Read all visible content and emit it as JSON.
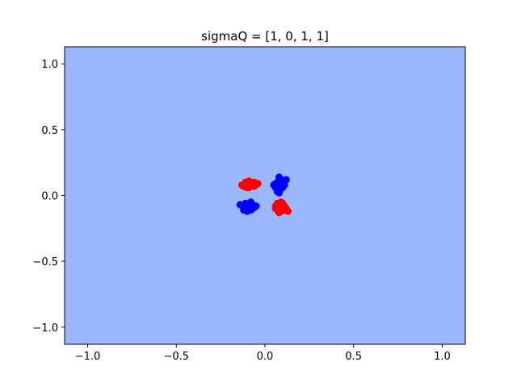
{
  "chart_data": {
    "type": "scatter",
    "title": "sigmaQ = [1, 0, 1, 1]",
    "xlabel": "",
    "ylabel": "",
    "xlim": [
      -1.13,
      1.13
    ],
    "ylim": [
      -1.13,
      1.13
    ],
    "grid": false,
    "background_color": "#9bb7ff",
    "x_ticks": [
      -1.0,
      -0.5,
      0.0,
      0.5,
      1.0
    ],
    "x_tick_labels": [
      "−1.0",
      "−0.5",
      "0.0",
      "0.5",
      "1.0"
    ],
    "y_ticks": [
      -1.0,
      -0.5,
      0.0,
      0.5,
      1.0
    ],
    "y_tick_labels": [
      "−1.0",
      "−0.5",
      "0.0",
      "0.5",
      "1.0"
    ],
    "series": [
      {
        "color": "#ff0000",
        "points": [
          [
            -0.12,
            0.07
          ],
          [
            -0.11,
            0.1
          ],
          [
            -0.1,
            0.08
          ],
          [
            -0.09,
            0.11
          ],
          [
            -0.08,
            0.07
          ],
          [
            -0.07,
            0.09
          ],
          [
            -0.06,
            0.1
          ],
          [
            -0.05,
            0.08
          ],
          [
            -0.13,
            0.08
          ],
          [
            -0.1,
            0.06
          ],
          [
            -0.08,
            0.09
          ],
          [
            -0.06,
            0.07
          ],
          [
            -0.04,
            0.09
          ],
          [
            -0.11,
            0.09
          ],
          [
            -0.09,
            0.06
          ],
          [
            0.06,
            -0.08
          ],
          [
            0.07,
            -0.06
          ],
          [
            0.08,
            -0.1
          ],
          [
            0.09,
            -0.07
          ],
          [
            0.1,
            -0.09
          ],
          [
            0.11,
            -0.11
          ],
          [
            0.08,
            -0.13
          ],
          [
            0.09,
            -0.05
          ],
          [
            0.12,
            -0.1
          ],
          [
            0.13,
            -0.12
          ],
          [
            0.07,
            -0.11
          ],
          [
            0.1,
            -0.06
          ],
          [
            0.11,
            -0.08
          ],
          [
            0.09,
            -0.12
          ],
          [
            0.06,
            -0.1
          ]
        ]
      },
      {
        "color": "#0000ff",
        "points": [
          [
            0.05,
            0.08
          ],
          [
            0.06,
            0.06
          ],
          [
            0.07,
            0.1
          ],
          [
            0.08,
            0.07
          ],
          [
            0.09,
            0.09
          ],
          [
            0.1,
            0.11
          ],
          [
            0.08,
            0.14
          ],
          [
            0.09,
            0.05
          ],
          [
            0.07,
            0.03
          ],
          [
            0.11,
            0.08
          ],
          [
            0.12,
            0.12
          ],
          [
            0.1,
            0.06
          ],
          [
            0.06,
            0.09
          ],
          [
            0.08,
            0.02
          ],
          [
            0.09,
            0.12
          ],
          [
            -0.14,
            -0.07
          ],
          [
            -0.12,
            -0.09
          ],
          [
            -0.11,
            -0.06
          ],
          [
            -0.1,
            -0.1
          ],
          [
            -0.09,
            -0.08
          ],
          [
            -0.08,
            -0.11
          ],
          [
            -0.07,
            -0.07
          ],
          [
            -0.06,
            -0.09
          ],
          [
            -0.1,
            -0.12
          ],
          [
            -0.08,
            -0.05
          ],
          [
            -0.12,
            -0.11
          ],
          [
            -0.05,
            -0.08
          ],
          [
            -0.09,
            -0.1
          ],
          [
            -0.11,
            -0.08
          ],
          [
            -0.07,
            -0.1
          ]
        ]
      }
    ]
  }
}
